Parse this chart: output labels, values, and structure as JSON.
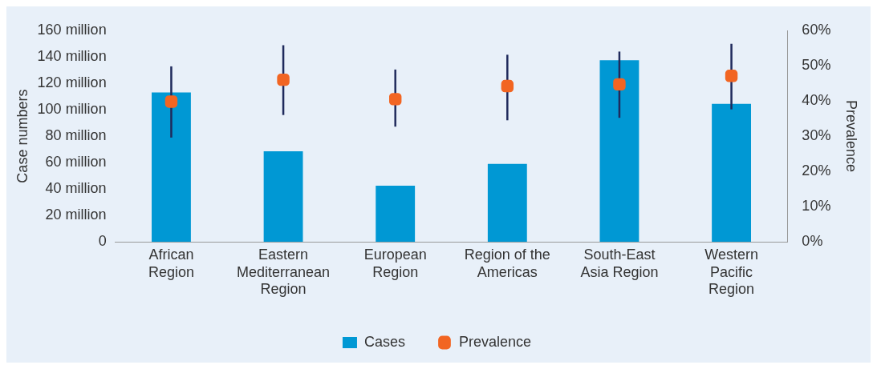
{
  "chart_data": {
    "type": "bar",
    "categories": [
      "African Region",
      "Eastern Mediterranean Region",
      "European Region",
      "Region of the Americas",
      "South-East Asia Region",
      "Western Pacific Region"
    ],
    "ylabel": "Case numbers",
    "y2label": "Prevalence",
    "ylim": [
      0,
      160
    ],
    "yticks": [
      {
        "value": 0,
        "label": "0"
      },
      {
        "value": 20,
        "label": "20 million"
      },
      {
        "value": 40,
        "label": "40 million"
      },
      {
        "value": 60,
        "label": "60 million"
      },
      {
        "value": 80,
        "label": "80 million"
      },
      {
        "value": 100,
        "label": "100 million"
      },
      {
        "value": 120,
        "label": "120 million"
      },
      {
        "value": 140,
        "label": "140 million"
      },
      {
        "value": 160,
        "label": "160 million"
      }
    ],
    "y2lim": [
      0,
      60
    ],
    "y2ticks": [
      {
        "value": 0,
        "label": "0%"
      },
      {
        "value": 10,
        "label": "10%"
      },
      {
        "value": 20,
        "label": "20%"
      },
      {
        "value": 30,
        "label": "30%"
      },
      {
        "value": 40,
        "label": "40%"
      },
      {
        "value": 50,
        "label": "50%"
      },
      {
        "value": 60,
        "label": "60%"
      }
    ],
    "series": [
      {
        "name": "Cases",
        "color": "#0098d4",
        "values": [
          113,
          68.5,
          42.5,
          59,
          137.5,
          104.5
        ]
      },
      {
        "name": "Prevalence",
        "type": "scatter",
        "axis": "y2",
        "color": "#f26522",
        "marker": "square",
        "values": [
          39.8,
          46,
          40.5,
          44.2,
          44.7,
          47.1
        ],
        "errors": [
          [
            29.6,
            49.8
          ],
          [
            36,
            55.8
          ],
          [
            32.7,
            48.9
          ],
          [
            34.5,
            53.1
          ],
          [
            35.2,
            54
          ],
          [
            37.6,
            56.2
          ]
        ]
      }
    ],
    "grid": false,
    "legend": "bottom"
  }
}
